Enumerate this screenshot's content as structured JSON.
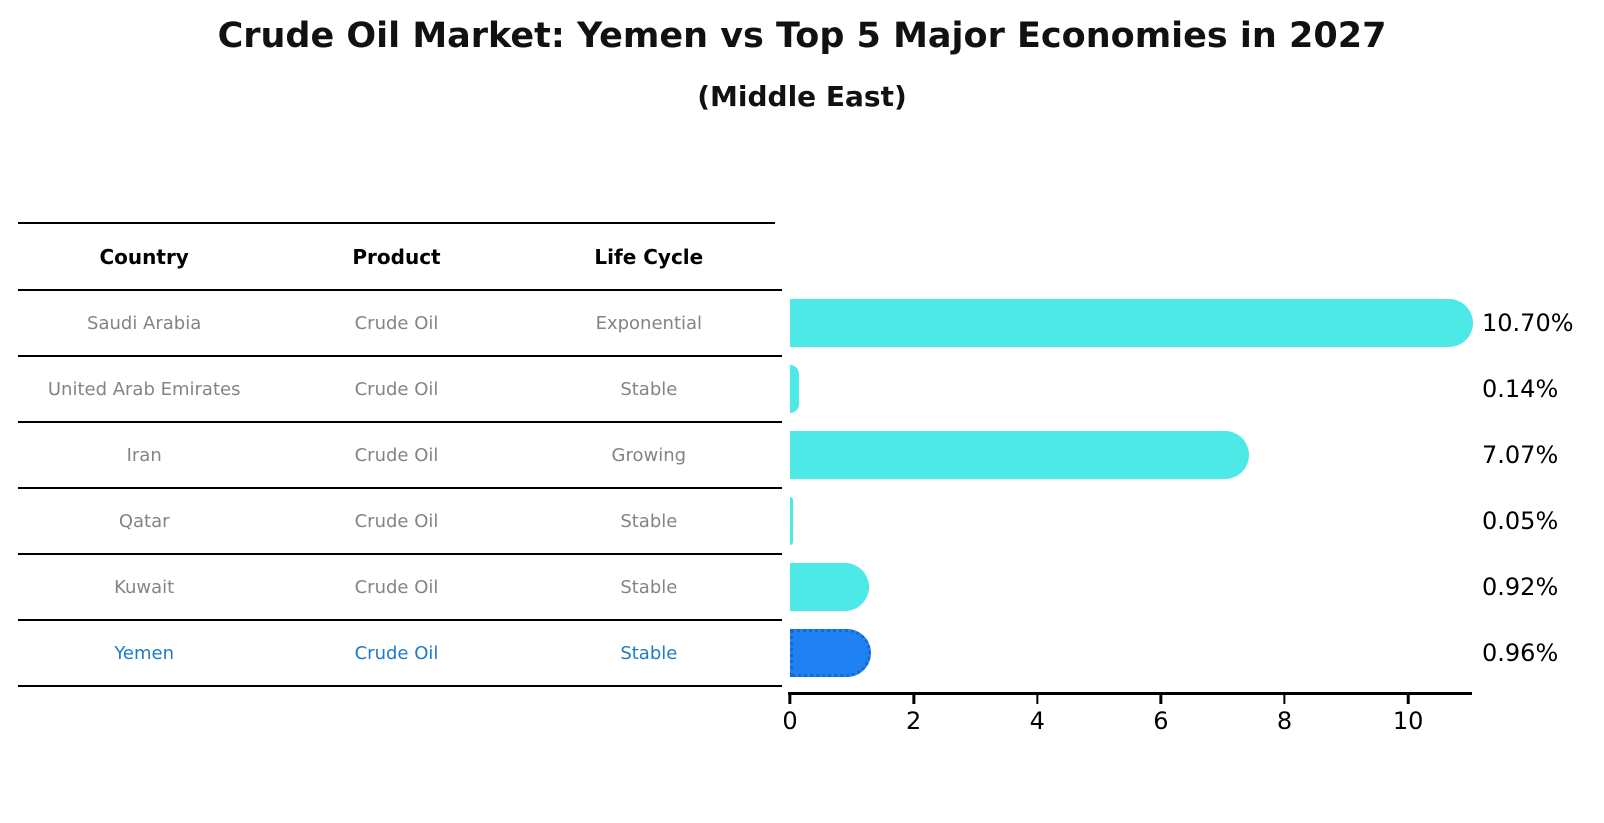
{
  "title": "Crude Oil Market: Yemen vs Top 5 Major Economies in 2027",
  "subtitle": "(Middle East)",
  "colors": {
    "bar": "#4CE9E7",
    "highlight_bar": "#2082F2",
    "highlight_bar_border": "#1668D2",
    "highlight_text": "#1F7AC8",
    "table_text": "#848484",
    "axis": "#000000"
  },
  "table": {
    "headers": [
      "Country",
      "Product",
      "Life Cycle"
    ],
    "rows": [
      {
        "country": "Saudi Arabia",
        "product": "Crude Oil",
        "life_cycle": "Exponential",
        "highlight": false
      },
      {
        "country": "United Arab Emirates",
        "product": "Crude Oil",
        "life_cycle": "Stable",
        "highlight": false
      },
      {
        "country": "Iran",
        "product": "Crude Oil",
        "life_cycle": "Growing",
        "highlight": false
      },
      {
        "country": "Qatar",
        "product": "Crude Oil",
        "life_cycle": "Stable",
        "highlight": false
      },
      {
        "country": "Kuwait",
        "product": "Crude Oil",
        "life_cycle": "Stable",
        "highlight": false
      },
      {
        "country": "Yemen",
        "product": "Crude Oil",
        "life_cycle": "Stable",
        "highlight": true
      }
    ]
  },
  "chart_data": {
    "type": "bar",
    "orientation": "horizontal",
    "title": "Crude Oil Market: Yemen vs Top 5 Major Economies in 2027",
    "subtitle": "(Middle East)",
    "categories": [
      "Saudi Arabia",
      "United Arab Emirates",
      "Iran",
      "Qatar",
      "Kuwait",
      "Yemen"
    ],
    "values": [
      10.7,
      0.14,
      7.07,
      0.05,
      0.92,
      0.96
    ],
    "value_labels": [
      "10.70%",
      "0.14%",
      "7.07%",
      "0.05%",
      "0.92%",
      "0.96%"
    ],
    "highlight_category": "Yemen",
    "xlabel": "",
    "ylabel": "",
    "xlim": [
      0,
      11
    ],
    "xticks": [
      0,
      2,
      4,
      6,
      8,
      10
    ],
    "xtick_labels": [
      "0",
      "2",
      "4",
      "6",
      "8",
      "10"
    ],
    "grid": false,
    "legend": false
  }
}
